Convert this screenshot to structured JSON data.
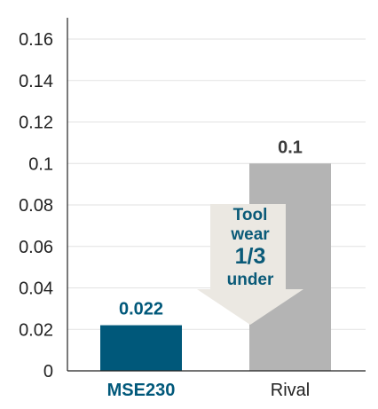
{
  "chart_data": {
    "type": "bar",
    "categories": [
      "MSE230",
      "Rival"
    ],
    "values": [
      0.022,
      0.1
    ],
    "data_labels": [
      "0.022",
      "0.1"
    ],
    "ylim": [
      0,
      0.16
    ],
    "yticks": [
      0,
      0.02,
      0.04,
      0.06,
      0.08,
      0.1,
      0.12,
      0.14,
      0.16
    ],
    "ytick_labels": [
      "0",
      "0.02",
      "0.04",
      "0.06",
      "0.08",
      "0.1",
      "0.12",
      "0.14",
      "0.16"
    ],
    "grid": true,
    "bar_colors": [
      "#00587a",
      "#b4b4b4"
    ],
    "category_label_colors": [
      "#00587a",
      "#222222"
    ],
    "data_label_colors": [
      "#00587a",
      "#3a3a3a"
    ],
    "category_label_bold": [
      true,
      false
    ]
  },
  "callout": {
    "line1": "Tool",
    "line2": "wear",
    "line3": "1/3",
    "line4": "under",
    "color": "#ebe8e2",
    "text_color": "#0a5a78"
  }
}
